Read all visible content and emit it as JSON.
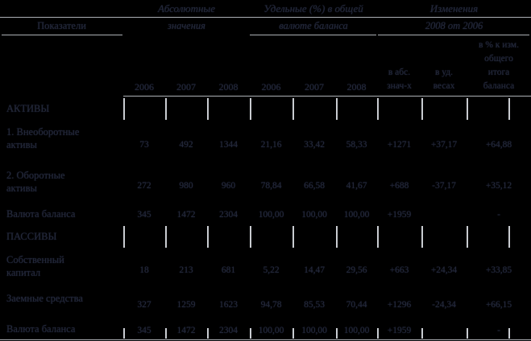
{
  "colors": {
    "background": "#000000",
    "text": "#232838",
    "line": "#bfc3c9"
  },
  "header": {
    "col1": {
      "title": "Показатели"
    },
    "groups": [
      {
        "line1": "Абсолютные",
        "line2": "значения"
      },
      {
        "line1": "Удельные (%) в общей",
        "line2": "валюте баланса"
      },
      {
        "line1": "Изменения",
        "line2": "2008 от 2006"
      }
    ],
    "years": [
      "2006",
      "2007",
      "2008",
      "2006",
      "2007",
      "2008"
    ],
    "change_cols": [
      [
        "в абс.",
        "знач-х"
      ],
      [
        "в уд.",
        "весах"
      ],
      [
        "в % к изм.",
        "общего",
        "итога",
        "баланса"
      ]
    ]
  },
  "rows": [
    {
      "type": "section",
      "label": "АКТИВЫ"
    },
    {
      "type": "data",
      "label": [
        "1. Внеоборотные",
        "активы"
      ],
      "values": [
        "73",
        "492",
        "1344",
        "21,16",
        "33,42",
        "58,33",
        "+1271",
        "+37,17",
        "+64,88"
      ]
    },
    {
      "type": "data",
      "label": [
        "2. Оборотные",
        "активы"
      ],
      "values": [
        "272",
        "980",
        "960",
        "78,84",
        "66,58",
        "41,67",
        "+688",
        "-37,17",
        "+35,12"
      ]
    },
    {
      "type": "data",
      "label": [
        "Валюта баланса"
      ],
      "values": [
        "345",
        "1472",
        "2304",
        "100,00",
        "100,00",
        "100,00",
        "+1959",
        "",
        "-"
      ]
    },
    {
      "type": "section",
      "label": "ПАССИВЫ"
    },
    {
      "type": "data",
      "label": [
        "Собственный",
        "капитал"
      ],
      "values": [
        "18",
        "213",
        "681",
        "5,22",
        "14,47",
        "29,56",
        "+663",
        "+24,34",
        "+33,85"
      ]
    },
    {
      "type": "data",
      "label": [
        "Заемные средства"
      ],
      "values": [
        "327",
        "1259",
        "1623",
        "94,78",
        "85,53",
        "70,44",
        "+1296",
        "-24,34",
        "+66,15"
      ]
    },
    {
      "type": "data",
      "label": [
        "Валюта баланса"
      ],
      "values": [
        "345",
        "1472",
        "2304",
        "100,00",
        "100,00",
        "100,00",
        "+1959",
        "",
        "-"
      ]
    }
  ]
}
